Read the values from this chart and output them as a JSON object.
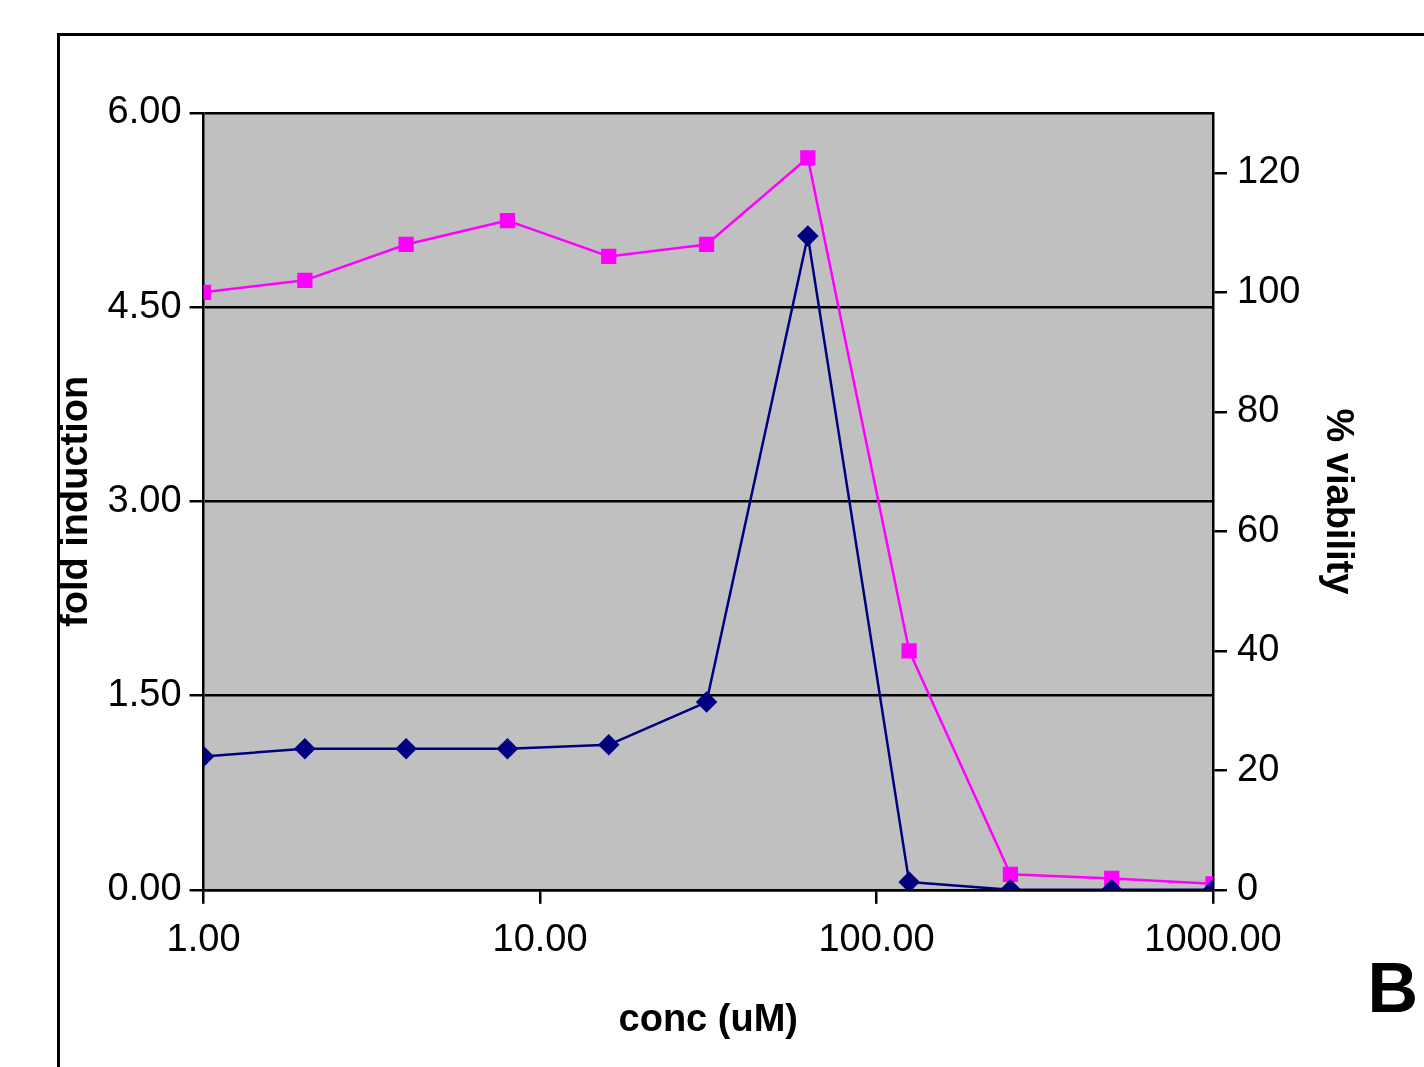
{
  "chart_data": {
    "type": "line",
    "xlabel": "conc (uM)",
    "ylabel": "fold induction",
    "y2label": "% viability",
    "log": "x",
    "grid": "y",
    "legend": false,
    "x": [
      1,
      2,
      4,
      8,
      16,
      31.25,
      62.5,
      125,
      250,
      500,
      1000
    ],
    "xlim": [
      1,
      1000
    ],
    "xticks": [
      {
        "value": 1,
        "label": "1.00"
      },
      {
        "value": 10,
        "label": "10.00"
      },
      {
        "value": 100,
        "label": "100.00"
      },
      {
        "value": 1000,
        "label": "1000.00"
      }
    ],
    "ylim": [
      0,
      6
    ],
    "yticks": [
      {
        "value": 0,
        "label": "0.00"
      },
      {
        "value": 1.5,
        "label": "1.50"
      },
      {
        "value": 3,
        "label": "3.00"
      },
      {
        "value": 4.5,
        "label": "4.50"
      },
      {
        "value": 6,
        "label": "6.00"
      }
    ],
    "y2lim": [
      0,
      130
    ],
    "y2ticks": [
      0,
      20,
      40,
      60,
      80,
      100,
      120
    ],
    "series": [
      {
        "color": "#000080",
        "marker": "diamond",
        "values": [
          1.03,
          1.09,
          1.09,
          1.09,
          1.12,
          1.45,
          5.05,
          0.06,
          0,
          0,
          0
        ]
      },
      {
        "color": "#ff00ff",
        "marker": "square",
        "axis": "y2",
        "values": [
          100,
          102,
          108,
          112,
          106,
          108,
          122.5,
          40,
          2.6,
          1.9,
          1
        ]
      }
    ],
    "annotations": [
      "B"
    ]
  }
}
